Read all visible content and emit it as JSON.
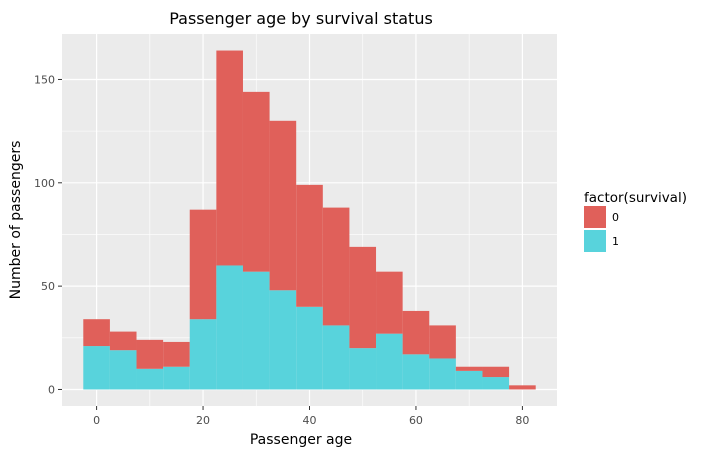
{
  "chart_data": {
    "type": "bar",
    "subtype": "stacked-histogram",
    "title": "Passenger age by survival status",
    "xlabel": "Passenger age",
    "ylabel": "Number of passengers",
    "xlim": [
      -6.5,
      86.5
    ],
    "ylim": [
      -8,
      172
    ],
    "x_ticks": [
      0,
      20,
      40,
      60,
      80
    ],
    "y_ticks": [
      0,
      50,
      100,
      150
    ],
    "grid": true,
    "bin_width": 5,
    "bin_starts": [
      -2.5,
      2.5,
      7.5,
      12.5,
      17.5,
      22.5,
      27.5,
      32.5,
      37.5,
      42.5,
      47.5,
      52.5,
      57.5,
      62.5,
      67.5,
      72.5,
      77.5
    ],
    "legend": {
      "title": "factor(survival)",
      "position": "right"
    },
    "series": [
      {
        "name": "0",
        "color": "#e0605a",
        "values": [
          13,
          9,
          14,
          12,
          53,
          104,
          87,
          82,
          59,
          57,
          49,
          30,
          21,
          16,
          2,
          5,
          2
        ]
      },
      {
        "name": "1",
        "color": "#58d3dc",
        "values": [
          21,
          19,
          10,
          11,
          34,
          60,
          57,
          48,
          40,
          31,
          20,
          27,
          17,
          15,
          9,
          6,
          0
        ]
      }
    ],
    "panel_background": "#ebebeb",
    "grid_color": "#ffffff"
  }
}
